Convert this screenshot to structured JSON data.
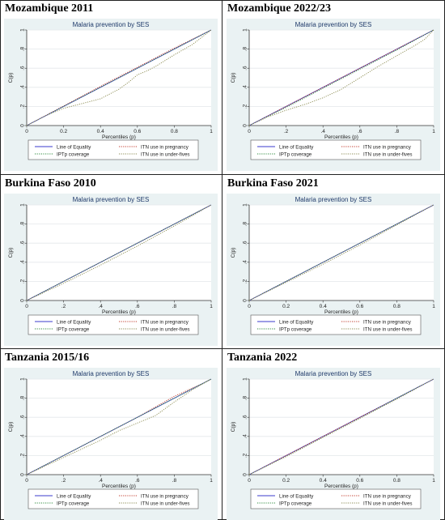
{
  "chart_data": [
    {
      "type": "line",
      "panel_title": "Mozambique 2011",
      "title": "Malaria prevention by SES",
      "xlabel": "Percentiles (p)",
      "ylabel": "C(p)",
      "xlim": [
        0,
        1
      ],
      "ylim": [
        0,
        1
      ],
      "xticks": [
        "0",
        "0.2",
        "0.4",
        "0.6",
        "0.8",
        "1"
      ],
      "yticks": [
        "0",
        ".2",
        ".4",
        ".6",
        ".8",
        "1"
      ],
      "legend": [
        "Line of Equality",
        "ITN use in pregnancy",
        "IPTp coverage",
        "ITN use in under-fives"
      ],
      "series": [
        {
          "name": "Line of Equality",
          "color": "#3b3bcc",
          "style": "solid",
          "x": [
            0,
            1
          ],
          "y": [
            0,
            1
          ]
        },
        {
          "name": "ITN use in pregnancy",
          "color": "#c0392b",
          "style": "dotted",
          "x": [
            0,
            0.2,
            0.4,
            0.6,
            0.8,
            1
          ],
          "y": [
            0,
            0.205,
            0.41,
            0.61,
            0.81,
            1
          ]
        },
        {
          "name": "IPTp coverage",
          "color": "#2e8b3e",
          "style": "dotted",
          "x": [
            0,
            0.2,
            0.4,
            0.6,
            0.8,
            1
          ],
          "y": [
            0,
            0.2,
            0.4,
            0.6,
            0.8,
            1
          ]
        },
        {
          "name": "ITN use in under-fives",
          "color": "#8a8a50",
          "style": "dotted",
          "x": [
            0,
            0.1,
            0.2,
            0.3,
            0.4,
            0.5,
            0.55,
            0.6,
            0.65,
            0.7,
            0.8,
            0.9,
            1
          ],
          "y": [
            0,
            0.1,
            0.18,
            0.23,
            0.28,
            0.38,
            0.45,
            0.53,
            0.57,
            0.62,
            0.74,
            0.85,
            1
          ]
        }
      ]
    },
    {
      "type": "line",
      "panel_title": "Mozambique 2022/23",
      "title": "Malaria prevention by SES",
      "xlabel": "Percentiles (p)",
      "ylabel": "C(p)",
      "xlim": [
        0,
        1
      ],
      "ylim": [
        0,
        1
      ],
      "xticks": [
        "0",
        ".2",
        ".4",
        ".6",
        ".8",
        "1"
      ],
      "yticks": [
        "0",
        ".2",
        ".4",
        ".6",
        ".8",
        "1"
      ],
      "legend": [
        "Line of Equality",
        "ITN use in pregnancy",
        "IPTp coverage",
        "ITN use in under-fives"
      ],
      "series": [
        {
          "name": "Line of Equality",
          "color": "#3b3bcc",
          "style": "solid",
          "x": [
            0,
            1
          ],
          "y": [
            0,
            1
          ]
        },
        {
          "name": "ITN use in pregnancy",
          "color": "#c0392b",
          "style": "dotted",
          "x": [
            0,
            0.2,
            0.4,
            0.6,
            0.8,
            1
          ],
          "y": [
            0,
            0.2,
            0.4,
            0.6,
            0.8,
            1
          ]
        },
        {
          "name": "IPTp coverage",
          "color": "#2e8b3e",
          "style": "dotted",
          "x": [
            0,
            0.2,
            0.4,
            0.6,
            0.8,
            1
          ],
          "y": [
            0,
            0.19,
            0.39,
            0.59,
            0.79,
            1
          ]
        },
        {
          "name": "ITN use in under-fives",
          "color": "#8a8a50",
          "style": "dotted",
          "x": [
            0,
            0.1,
            0.2,
            0.3,
            0.4,
            0.5,
            0.6,
            0.7,
            0.8,
            0.9,
            0.95,
            1
          ],
          "y": [
            0,
            0.09,
            0.16,
            0.22,
            0.29,
            0.38,
            0.5,
            0.62,
            0.73,
            0.84,
            0.9,
            1
          ]
        }
      ]
    },
    {
      "type": "line",
      "panel_title": "Burkina Faso 2010",
      "title": "Malaria prevention by SES",
      "xlabel": "Percentiles (p)",
      "ylabel": "C(p)",
      "xlim": [
        0,
        1
      ],
      "ylim": [
        0,
        1
      ],
      "xticks": [
        "0",
        ".2",
        ".4",
        ".6",
        ".8",
        "1"
      ],
      "yticks": [
        "0",
        ".2",
        ".4",
        ".6",
        ".8",
        "1"
      ],
      "legend": [
        "Line of Equality",
        "ITN use in pregnancy",
        "IPTp coverage",
        "ITN use in under-fives"
      ],
      "series": [
        {
          "name": "Line of Equality",
          "color": "#3b3bcc",
          "style": "solid",
          "x": [
            0,
            1
          ],
          "y": [
            0,
            1
          ]
        },
        {
          "name": "ITN use in pregnancy",
          "color": "#c0392b",
          "style": "dotted",
          "x": [
            0,
            0.2,
            0.4,
            0.6,
            0.8,
            1
          ],
          "y": [
            0,
            0.2,
            0.4,
            0.6,
            0.8,
            1
          ]
        },
        {
          "name": "IPTp coverage",
          "color": "#2e8b3e",
          "style": "dotted",
          "x": [
            0,
            0.2,
            0.4,
            0.6,
            0.8,
            1
          ],
          "y": [
            0,
            0.2,
            0.4,
            0.6,
            0.8,
            1
          ]
        },
        {
          "name": "ITN use in under-fives",
          "color": "#8a8a50",
          "style": "dotted",
          "x": [
            0,
            0.2,
            0.4,
            0.6,
            0.8,
            1
          ],
          "y": [
            0,
            0.18,
            0.37,
            0.57,
            0.78,
            1
          ]
        }
      ]
    },
    {
      "type": "line",
      "panel_title": "Burkina Faso 2021",
      "title": "Malaria prevention by SES",
      "xlabel": "Percentiles (p)",
      "ylabel": "C(p)",
      "xlim": [
        0,
        1
      ],
      "ylim": [
        0,
        1
      ],
      "xticks": [
        "0",
        "0.2",
        "0.4",
        "0.6",
        "0.8",
        "1"
      ],
      "yticks": [
        "0",
        ".2",
        ".4",
        ".6",
        ".8",
        "1"
      ],
      "legend": [
        "Line of Equality",
        "ITN use in pregnancy",
        "IPTp coverage",
        "ITN use in under-fives"
      ],
      "series": [
        {
          "name": "Line of Equality",
          "color": "#3b3bcc",
          "style": "solid",
          "x": [
            0,
            1
          ],
          "y": [
            0,
            1
          ]
        },
        {
          "name": "ITN use in pregnancy",
          "color": "#c0392b",
          "style": "dotted",
          "x": [
            0,
            0.2,
            0.4,
            0.6,
            0.8,
            1
          ],
          "y": [
            0,
            0.2,
            0.4,
            0.6,
            0.8,
            1
          ]
        },
        {
          "name": "IPTp coverage",
          "color": "#2e8b3e",
          "style": "dotted",
          "x": [
            0,
            0.2,
            0.4,
            0.6,
            0.8,
            1
          ],
          "y": [
            0,
            0.2,
            0.4,
            0.6,
            0.8,
            1
          ]
        },
        {
          "name": "ITN use in under-fives",
          "color": "#8a8a50",
          "style": "dotted",
          "x": [
            0,
            0.2,
            0.4,
            0.6,
            0.8,
            1
          ],
          "y": [
            0,
            0.19,
            0.38,
            0.58,
            0.79,
            1
          ]
        }
      ]
    },
    {
      "type": "line",
      "panel_title": "Tanzania 2015/16",
      "title": "Malaria prevention by SES",
      "xlabel": "Percentiles (p)",
      "ylabel": "C(p)",
      "xlim": [
        0,
        1
      ],
      "ylim": [
        0,
        1
      ],
      "xticks": [
        "0",
        ".2",
        ".4",
        ".6",
        ".8",
        "1"
      ],
      "yticks": [
        "0",
        ".2",
        ".4",
        ".6",
        ".8",
        "1"
      ],
      "legend": [
        "Line of Equality",
        "ITN use in pregnancy",
        "IPTp coverage",
        "ITN use in under-fives"
      ],
      "series": [
        {
          "name": "Line of Equality",
          "color": "#3b3bcc",
          "style": "solid",
          "x": [
            0,
            1
          ],
          "y": [
            0,
            1
          ]
        },
        {
          "name": "ITN use in pregnancy",
          "color": "#c0392b",
          "style": "dotted",
          "x": [
            0,
            0.2,
            0.4,
            0.6,
            0.8,
            0.95,
            1
          ],
          "y": [
            0,
            0.2,
            0.4,
            0.6,
            0.82,
            0.95,
            1
          ]
        },
        {
          "name": "IPTp coverage",
          "color": "#2e8b3e",
          "style": "dotted",
          "x": [
            0,
            0.2,
            0.4,
            0.6,
            0.8,
            1
          ],
          "y": [
            0,
            0.2,
            0.4,
            0.6,
            0.8,
            1
          ]
        },
        {
          "name": "ITN use in under-fives",
          "color": "#8a8a50",
          "style": "dotted",
          "x": [
            0,
            0.1,
            0.2,
            0.3,
            0.4,
            0.5,
            0.6,
            0.7,
            0.8,
            0.9,
            1
          ],
          "y": [
            0,
            0.09,
            0.18,
            0.27,
            0.36,
            0.46,
            0.54,
            0.62,
            0.76,
            0.89,
            1
          ]
        }
      ]
    },
    {
      "type": "line",
      "panel_title": "Tanzania 2022",
      "title": "Malaria prevention by SES",
      "xlabel": "Percentiles (p)",
      "ylabel": "C(p)",
      "xlim": [
        0,
        1
      ],
      "ylim": [
        0,
        1
      ],
      "xticks": [
        "0",
        "0.2",
        "0.4",
        "0.6",
        "0.8",
        "1"
      ],
      "yticks": [
        "0",
        ".2",
        ".4",
        ".6",
        ".8",
        "1"
      ],
      "legend": [
        "Line of Equality",
        "ITN use in pregnancy",
        "IPTp coverage",
        "ITN use in under-fives"
      ],
      "series": [
        {
          "name": "Line of Equality",
          "color": "#3b3bcc",
          "style": "solid",
          "x": [
            0,
            1
          ],
          "y": [
            0,
            1
          ]
        },
        {
          "name": "ITN use in pregnancy",
          "color": "#c0392b",
          "style": "dotted",
          "x": [
            0,
            0.2,
            0.4,
            0.6,
            0.8,
            1
          ],
          "y": [
            0,
            0.2,
            0.4,
            0.6,
            0.8,
            1
          ]
        },
        {
          "name": "IPTp coverage",
          "color": "#2e8b3e",
          "style": "dotted",
          "x": [
            0,
            0.2,
            0.4,
            0.6,
            0.8,
            1
          ],
          "y": [
            0,
            0.19,
            0.39,
            0.59,
            0.8,
            1
          ]
        },
        {
          "name": "ITN use in under-fives",
          "color": "#8a8a50",
          "style": "dotted",
          "x": [
            0,
            0.2,
            0.4,
            0.6,
            0.8,
            1
          ],
          "y": [
            0,
            0.19,
            0.39,
            0.59,
            0.79,
            1
          ]
        }
      ]
    }
  ]
}
